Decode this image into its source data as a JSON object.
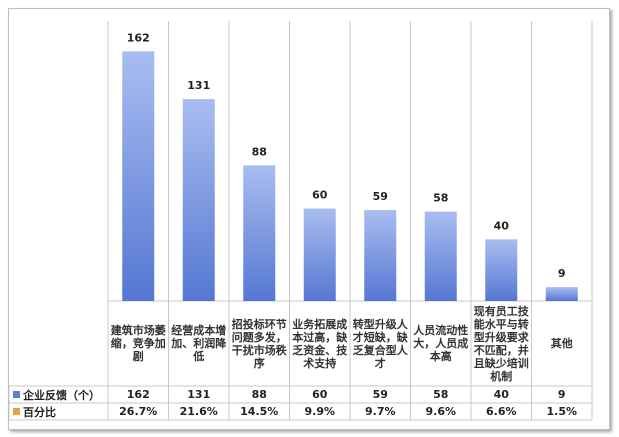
{
  "chart_data": {
    "type": "bar",
    "title": "",
    "categories": [
      "建筑市场萎缩，竞争加剧",
      "经营成本增加、利润降低",
      "招投标环节问题多发，干扰市场秩序",
      "业务拓展成本过高，缺乏资金、技术支持",
      "转型升级人才短缺，缺乏复合型人才",
      "人员流动性大，人员成本高",
      "现有员工技能水平与转型升级要求不匹配，并且缺少培训机制",
      "其他"
    ],
    "series": [
      {
        "name": "企业反馈（个）",
        "values": [
          162,
          131,
          88,
          60,
          59,
          58,
          40,
          9
        ],
        "color": "#5b7fd8"
      },
      {
        "name": "百分比",
        "values": [
          "26.7%",
          "21.6%",
          "14.5%",
          "9.9%",
          "9.7%",
          "9.6%",
          "6.6%",
          "1.5%"
        ],
        "color": "#e8a33c"
      }
    ],
    "ylim": [
      0,
      170
    ],
    "grid": false,
    "legend": "data-table"
  }
}
